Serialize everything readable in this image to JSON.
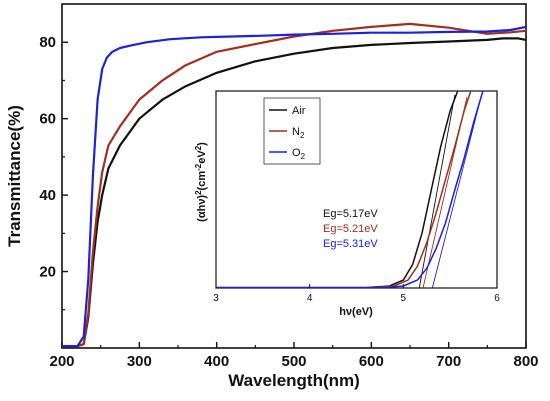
{
  "chart_data": [
    {
      "type": "line",
      "xlabel": "Wavelength(nm)",
      "ylabel": "Transmittance(%)",
      "xlim": [
        200,
        800
      ],
      "ylim": [
        0,
        90
      ],
      "xticks": [
        200,
        300,
        400,
        500,
        600,
        700,
        800
      ],
      "yticks": [
        20,
        40,
        60,
        80
      ],
      "grid": false,
      "series": [
        {
          "color": "#111111",
          "x": [
            200,
            220,
            228,
            234,
            240,
            246,
            252,
            260,
            275,
            300,
            330,
            360,
            400,
            450,
            500,
            550,
            600,
            650,
            700,
            750,
            770,
            790,
            800
          ],
          "y": [
            0.5,
            0.5,
            1,
            8,
            22,
            33,
            40,
            47,
            53,
            60,
            65,
            68.5,
            72,
            75,
            77,
            78.5,
            79.3,
            79.8,
            80.2,
            80.6,
            81,
            81,
            80.6
          ]
        },
        {
          "color": "#a0301c",
          "x": [
            200,
            220,
            228,
            234,
            240,
            246,
            252,
            260,
            275,
            300,
            330,
            360,
            400,
            450,
            500,
            550,
            600,
            650,
            700,
            750,
            780,
            800
          ],
          "y": [
            0.5,
            0.5,
            1,
            9,
            25,
            37,
            46,
            53,
            58,
            65,
            70,
            74,
            77.5,
            79.5,
            81.5,
            83,
            84,
            84.8,
            83.8,
            82.2,
            82.6,
            83
          ]
        },
        {
          "color": "#1c22d8",
          "x": [
            200,
            220,
            228,
            234,
            240,
            246,
            252,
            258,
            265,
            275,
            290,
            310,
            340,
            380,
            420,
            460,
            500,
            550,
            600,
            650,
            700,
            750,
            780,
            800
          ],
          "y": [
            0.5,
            0.5,
            3,
            18,
            45,
            65,
            73,
            76,
            77.5,
            78.5,
            79.2,
            80,
            80.8,
            81.3,
            81.5,
            81.7,
            82,
            82.2,
            82.5,
            82.5,
            82.7,
            82.8,
            83.2,
            84
          ]
        }
      ]
    },
    {
      "type": "line",
      "xlabel": "hν(eV)",
      "ylabel_parts": [
        "(αhν)",
        "2",
        "(cm",
        "-2",
        "eV",
        "2",
        ")"
      ],
      "xlim": [
        3,
        6
      ],
      "ylim": [
        0,
        1
      ],
      "xticks": [
        3,
        4,
        5,
        6
      ],
      "grid": false,
      "legend": {
        "position": "top-left",
        "entries": [
          {
            "label": "Air",
            "color": "#111111"
          },
          {
            "label": "N",
            "sub": "2",
            "color": "#a0301c"
          },
          {
            "label": "O",
            "sub": "2",
            "color": "#1c22d8"
          }
        ]
      },
      "annotations": [
        {
          "text": "Eg=5.17eV",
          "color": "#111111"
        },
        {
          "text": "Eg=5.21eV",
          "color": "#a0301c"
        },
        {
          "text": "Eg=5.31eV",
          "color": "#1c22d8"
        }
      ],
      "series": [
        {
          "color": "#111111",
          "x": [
            3.0,
            4.6,
            4.85,
            5.0,
            5.1,
            5.2,
            5.3,
            5.4,
            5.5,
            5.58
          ],
          "y": [
            0.002,
            0.002,
            0.01,
            0.04,
            0.12,
            0.28,
            0.5,
            0.72,
            0.9,
            1.0
          ]
        },
        {
          "color": "#a0301c",
          "x": [
            3.0,
            4.7,
            4.9,
            5.05,
            5.15,
            5.25,
            5.35,
            5.45,
            5.55,
            5.65,
            5.72
          ],
          "y": [
            0.002,
            0.002,
            0.01,
            0.04,
            0.11,
            0.23,
            0.38,
            0.55,
            0.72,
            0.9,
            1.0
          ]
        },
        {
          "color": "#1c22d8",
          "x": [
            3.0,
            4.8,
            5.0,
            5.15,
            5.25,
            5.35,
            5.45,
            5.55,
            5.65,
            5.75,
            5.85
          ],
          "y": [
            0.002,
            0.002,
            0.01,
            0.04,
            0.1,
            0.2,
            0.33,
            0.5,
            0.66,
            0.84,
            1.0
          ]
        }
      ],
      "fit_lines": [
        {
          "color": "#111111",
          "x": [
            5.17,
            5.55
          ],
          "y": [
            0.0,
            0.98
          ]
        },
        {
          "color": "#a0301c",
          "x": [
            5.21,
            5.68
          ],
          "y": [
            0.0,
            0.97
          ]
        },
        {
          "color": "#1c22d8",
          "x": [
            5.31,
            5.83
          ],
          "y": [
            0.0,
            0.97
          ]
        }
      ]
    }
  ]
}
